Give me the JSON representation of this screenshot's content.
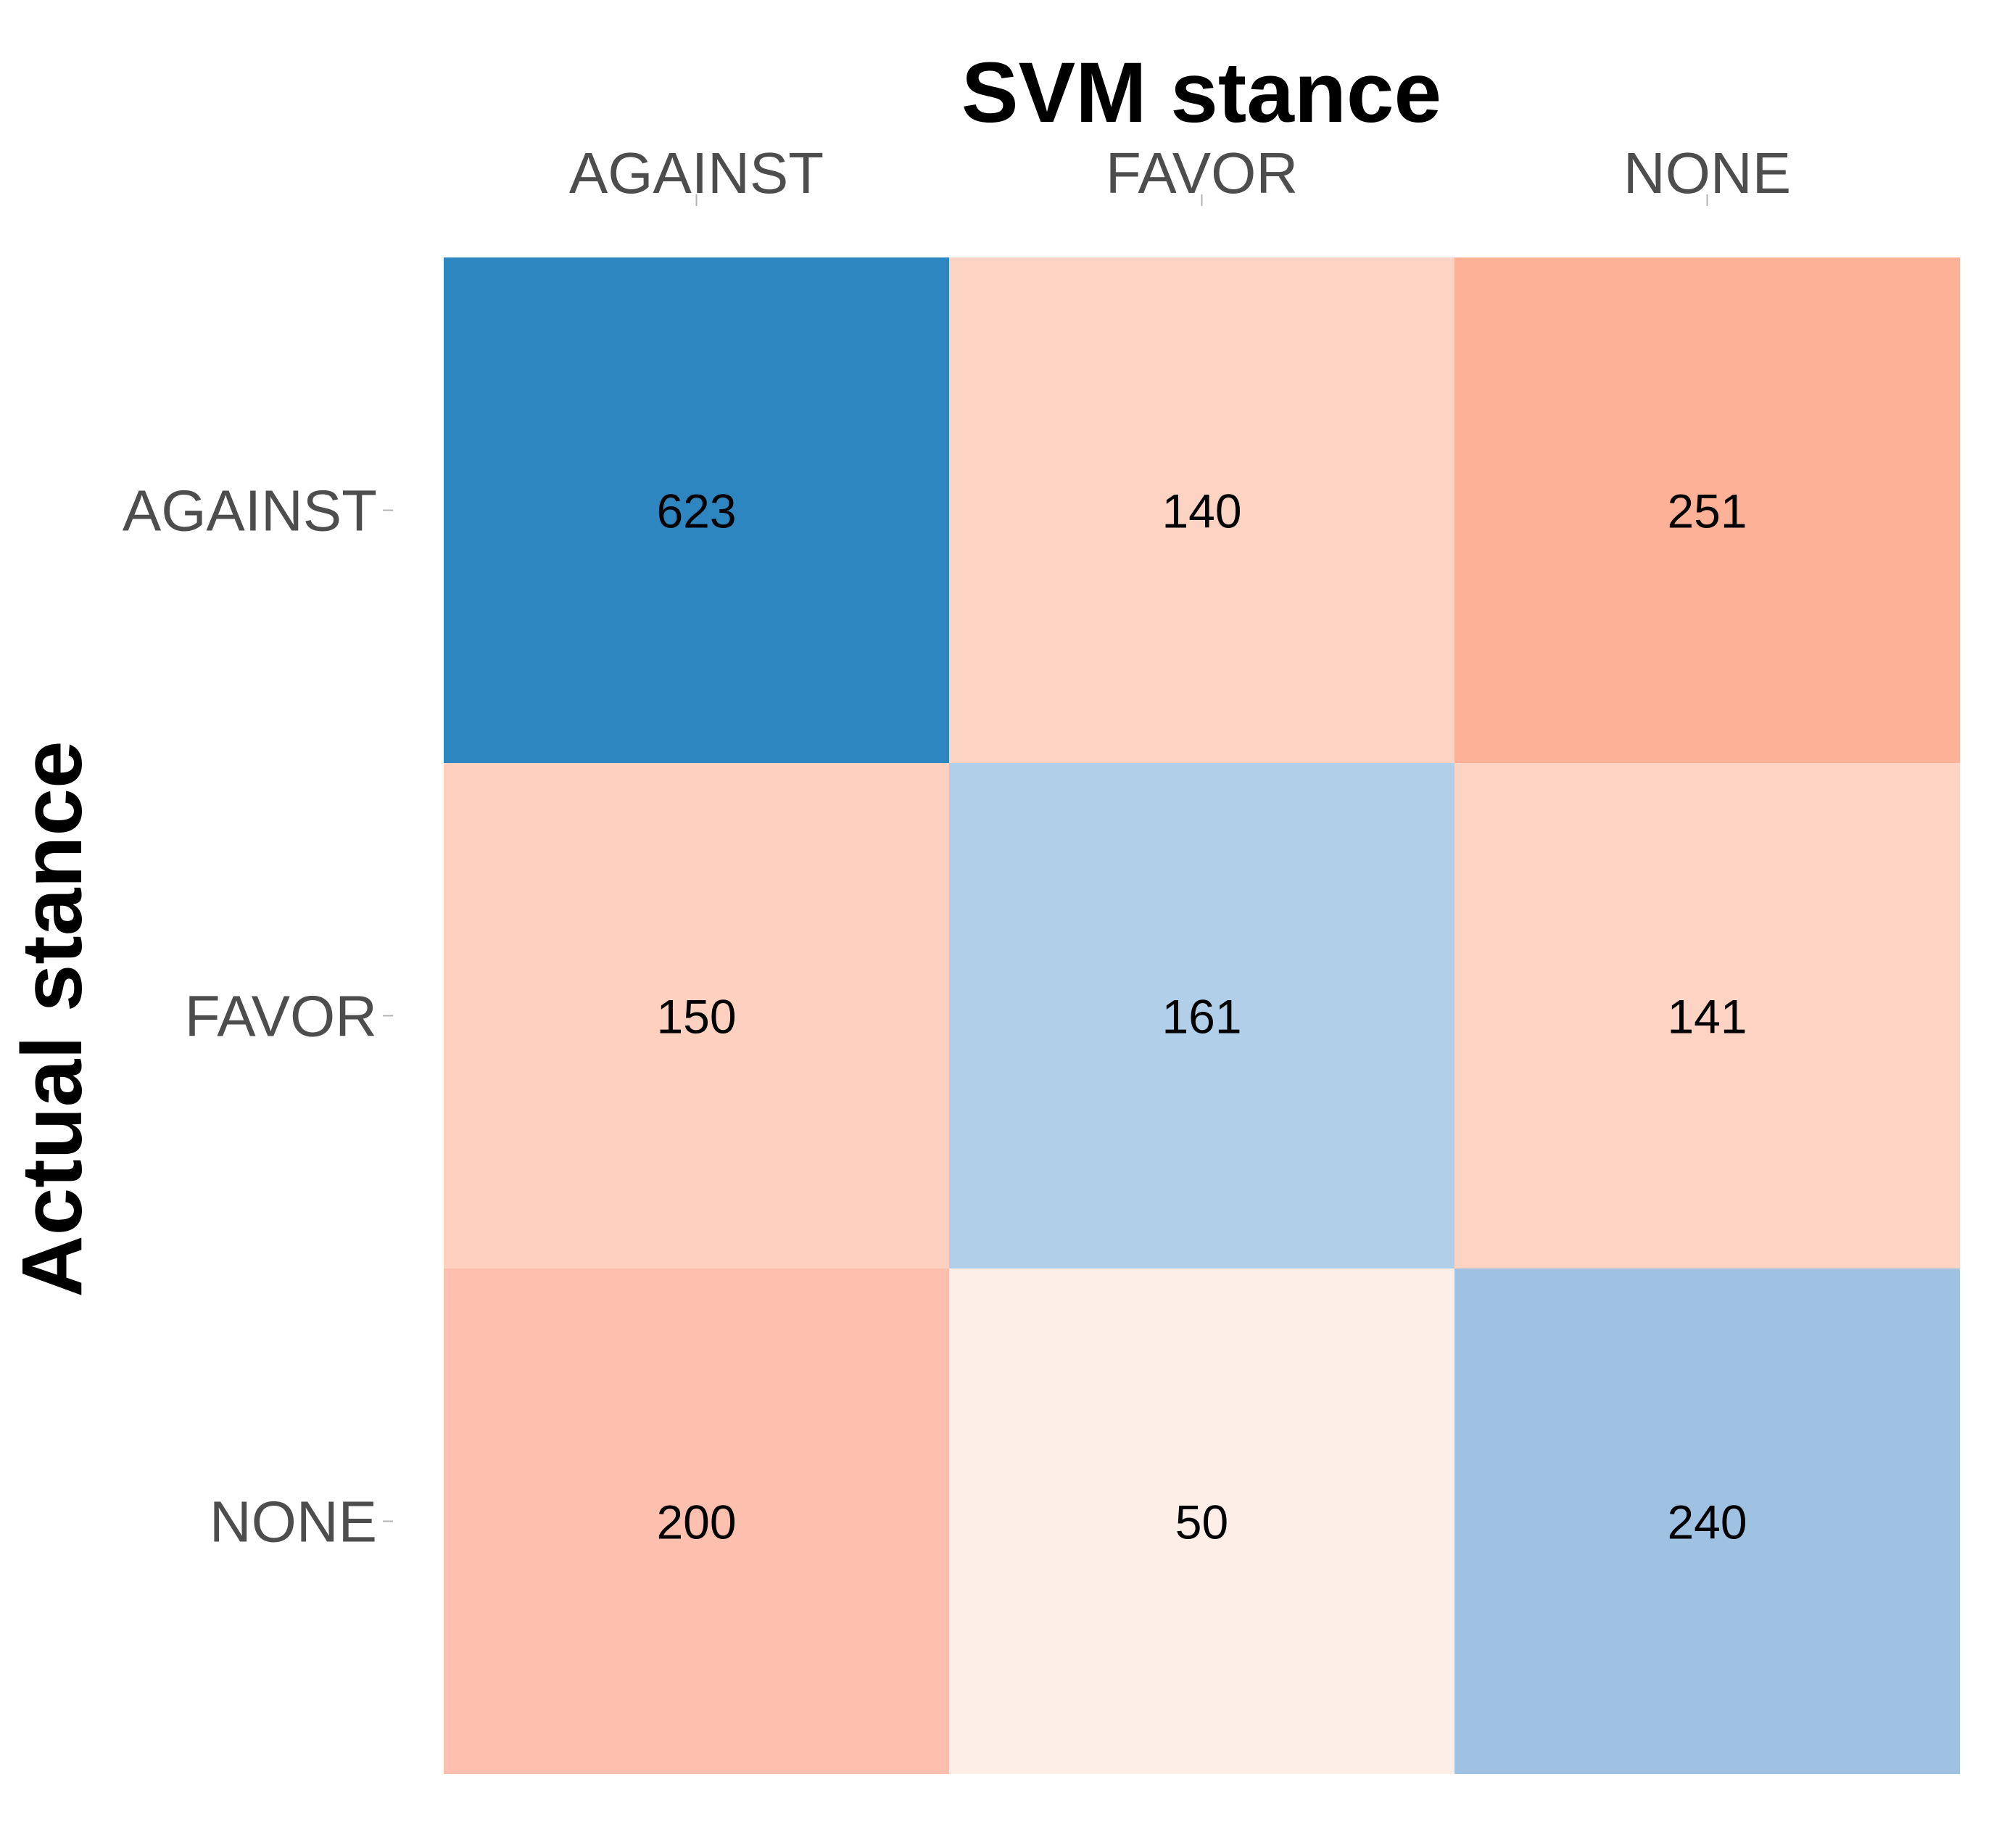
{
  "chart_data": {
    "type": "heatmap",
    "title": "",
    "xlabel": "SVM stance",
    "ylabel": "Actual stance",
    "x_categories": [
      "AGAINST",
      "FAVOR",
      "NONE"
    ],
    "y_categories": [
      "AGAINST",
      "FAVOR",
      "NONE"
    ],
    "x_axis_position": "top",
    "values": [
      [
        623,
        140,
        251
      ],
      [
        150,
        161,
        141
      ],
      [
        200,
        50,
        240
      ]
    ],
    "cell_colors": [
      [
        "#2e86c1",
        "#fdd3c4",
        "#fdb196"
      ],
      [
        "#fdd0c0",
        "#b2cfea",
        "#fdd3c4"
      ],
      [
        "#fdc0af",
        "#feeee8",
        "#9fc2e3"
      ]
    ],
    "color_scale": "diagonal cells in blues, off-diagonal cells in reds; darker = larger count",
    "grid": false,
    "legend": "none"
  }
}
